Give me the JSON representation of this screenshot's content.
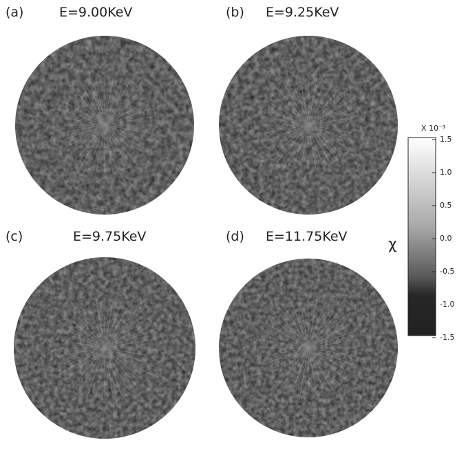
{
  "panels": [
    {
      "label": "(a)",
      "title": "E=9.00KeV"
    },
    {
      "label": "(b)",
      "title": "E=9.25KeV"
    },
    {
      "label": "(c)",
      "title": "E=9.75KeV"
    },
    {
      "label": "(d)",
      "title": "E=11.75KeV"
    }
  ],
  "colorbar": {
    "symbol": "χ",
    "scale": "X 10⁻³",
    "ticks": [
      "1.5",
      "1.0",
      "0.5",
      "0.0",
      "-0.5",
      "-1.0",
      "-1.5"
    ]
  }
}
